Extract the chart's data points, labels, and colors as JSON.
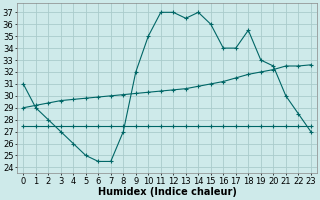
{
  "xlabel": "Humidex (Indice chaleur)",
  "background_color": "#ceeaea",
  "grid_color": "#aacccc",
  "line_color": "#006666",
  "x_ticks": [
    0,
    1,
    2,
    3,
    4,
    5,
    6,
    7,
    8,
    9,
    10,
    11,
    12,
    13,
    14,
    15,
    16,
    17,
    18,
    19,
    20,
    21,
    22,
    23
  ],
  "y_ticks": [
    24,
    25,
    26,
    27,
    28,
    29,
    30,
    31,
    32,
    33,
    34,
    35,
    36,
    37
  ],
  "ylim": [
    23.5,
    37.8
  ],
  "xlim": [
    -0.5,
    23.5
  ],
  "series1_x": [
    0,
    1,
    2,
    3,
    4,
    5,
    6,
    7,
    8,
    9,
    10,
    11,
    12,
    13,
    14,
    15,
    16,
    17,
    18,
    19,
    20,
    21,
    22,
    23
  ],
  "series1_y": [
    31.0,
    29.0,
    28.0,
    27.0,
    26.0,
    25.0,
    24.5,
    24.5,
    27.0,
    32.0,
    35.0,
    37.0,
    37.0,
    36.5,
    37.0,
    36.0,
    34.0,
    34.0,
    35.5,
    33.0,
    32.5,
    30.0,
    28.5,
    27.0
  ],
  "series2_x": [
    0,
    1,
    2,
    3,
    4,
    5,
    6,
    7,
    8,
    9,
    10,
    11,
    12,
    13,
    14,
    15,
    16,
    17,
    18,
    19,
    20,
    21,
    22,
    23
  ],
  "series2_y": [
    29.0,
    29.2,
    29.4,
    29.6,
    29.7,
    29.8,
    29.9,
    30.0,
    30.1,
    30.2,
    30.3,
    30.4,
    30.5,
    30.6,
    30.8,
    31.0,
    31.2,
    31.5,
    31.8,
    32.0,
    32.2,
    32.5,
    32.5,
    32.6
  ],
  "series3_x": [
    0,
    1,
    2,
    3,
    4,
    5,
    6,
    7,
    8,
    9,
    10,
    11,
    12,
    13,
    14,
    15,
    16,
    17,
    18,
    19,
    20,
    21,
    22,
    23
  ],
  "series3_y": [
    27.5,
    27.5,
    27.5,
    27.5,
    27.5,
    27.5,
    27.5,
    27.5,
    27.5,
    27.5,
    27.5,
    27.5,
    27.5,
    27.5,
    27.5,
    27.5,
    27.5,
    27.5,
    27.5,
    27.5,
    27.5,
    27.5,
    27.5,
    27.5
  ],
  "fontsize_ticks": 6,
  "fontsize_xlabel": 7,
  "linewidth": 0.8,
  "markersize": 2.5
}
